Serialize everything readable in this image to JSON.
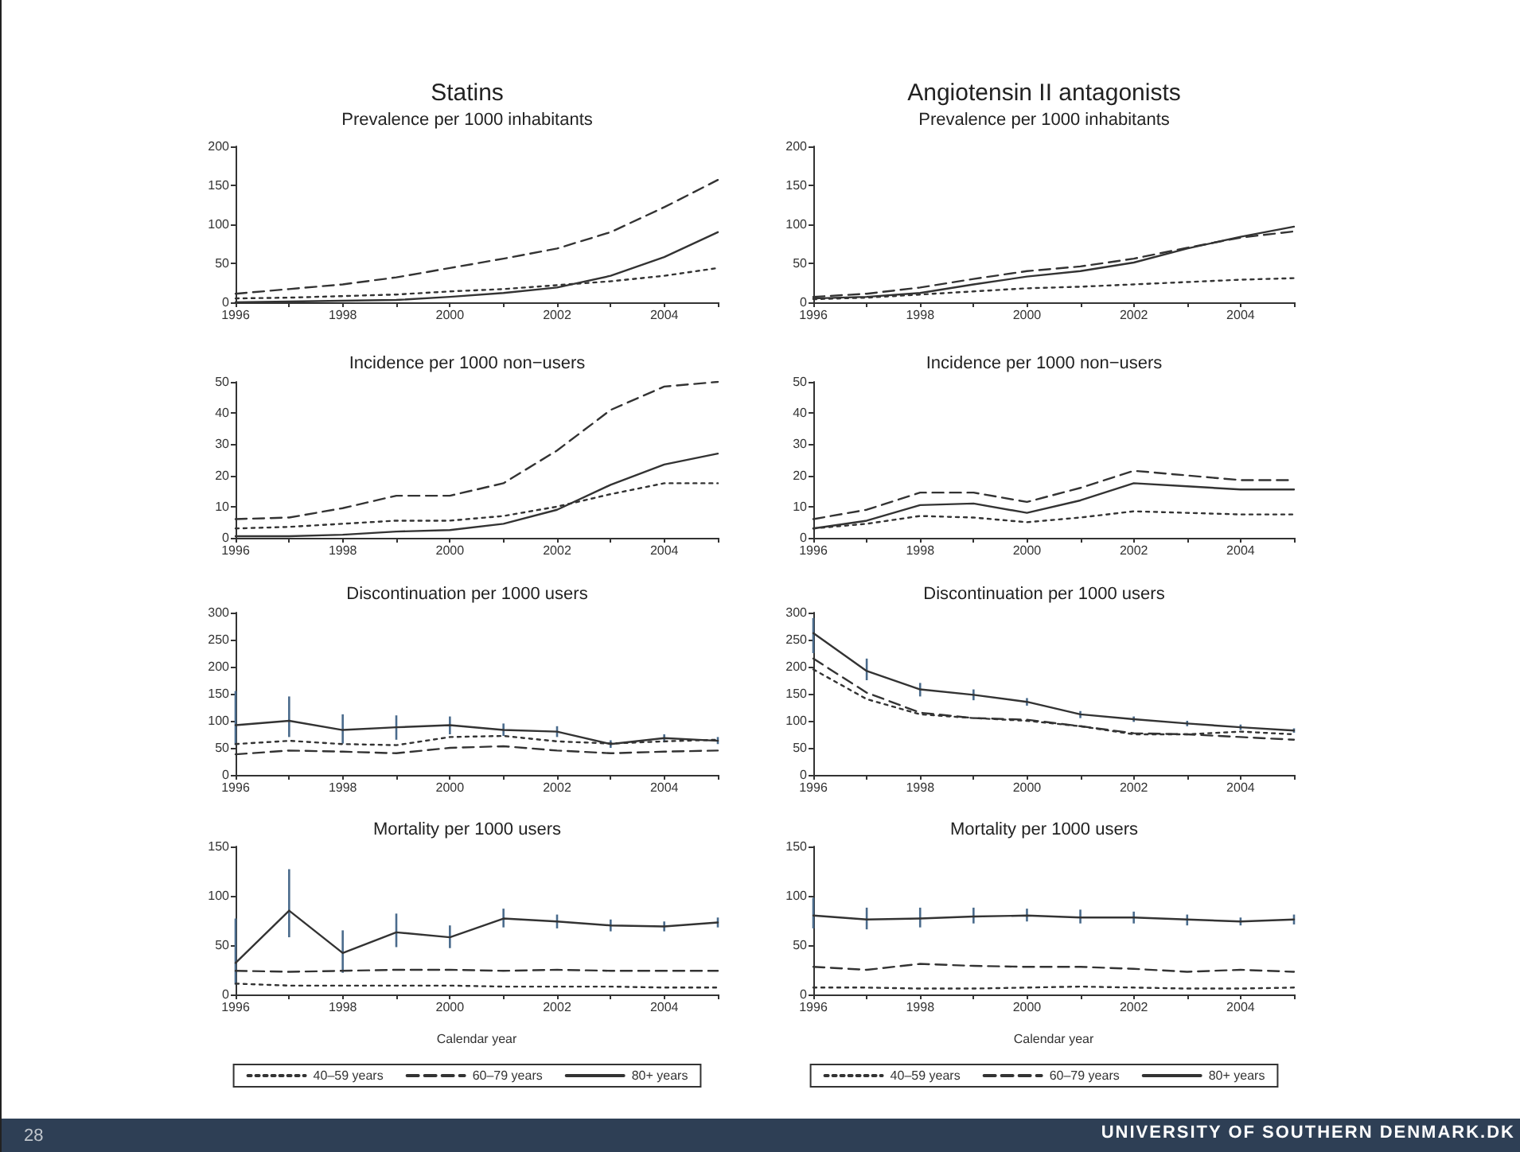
{
  "chart_data": [
    {
      "type": "line",
      "title": "Statins",
      "subtitle": "Prevalence per 1000 inhabitants",
      "x": [
        1996,
        1997,
        1998,
        1999,
        2000,
        2001,
        2002,
        2003,
        2004,
        2005
      ],
      "xlim": [
        1996,
        2005
      ],
      "xticks": [
        1996,
        {
          "value": 1997,
          "label": null
        },
        1998,
        {
          "value": 1999,
          "label": null
        },
        2000,
        {
          "value": 2001,
          "label": null
        },
        2002,
        {
          "value": 2003,
          "label": null
        },
        2004,
        {
          "value": 2005,
          "label": null
        }
      ],
      "ylim": [
        0,
        200
      ],
      "yticks": [
        0,
        50,
        100,
        150,
        200
      ],
      "grid": false,
      "legend": false,
      "marker": "none",
      "series": [
        {
          "color": "#333333",
          "line_style": "dotted",
          "values": [
            5,
            6,
            8,
            10,
            14,
            17,
            22,
            27,
            34,
            44
          ]
        },
        {
          "color": "#333333",
          "line_style": "dashed",
          "values": [
            11,
            17,
            23,
            32,
            44,
            56,
            69,
            90,
            122,
            157
          ]
        },
        {
          "color": "#333333",
          "line_style": "solid",
          "values": [
            0,
            1,
            2,
            3,
            7,
            12,
            19,
            34,
            58,
            90
          ]
        }
      ]
    },
    {
      "type": "line",
      "title": "Angiotensin II antagonists",
      "subtitle": "Prevalence per 1000 inhabitants",
      "x": [
        1996,
        1997,
        1998,
        1999,
        2000,
        2001,
        2002,
        2003,
        2004,
        2005
      ],
      "xlim": [
        1996,
        2005
      ],
      "xticks": [
        1996,
        {
          "value": 1997,
          "label": null
        },
        1998,
        {
          "value": 1999,
          "label": null
        },
        2000,
        {
          "value": 2001,
          "label": null
        },
        2002,
        {
          "value": 2003,
          "label": null
        },
        2004,
        {
          "value": 2005,
          "label": null
        }
      ],
      "ylim": [
        0,
        200
      ],
      "yticks": [
        0,
        50,
        100,
        150,
        200
      ],
      "grid": false,
      "legend": false,
      "marker": "none",
      "series": [
        {
          "color": "#333333",
          "line_style": "dotted",
          "values": [
            4,
            6,
            10,
            14,
            18,
            20,
            23,
            26,
            29,
            31
          ]
        },
        {
          "color": "#333333",
          "line_style": "dashed",
          "values": [
            7,
            11,
            19,
            30,
            40,
            46,
            56,
            70,
            83,
            91
          ]
        },
        {
          "color": "#333333",
          "line_style": "solid",
          "values": [
            5,
            7,
            12,
            23,
            33,
            40,
            51,
            69,
            84,
            97
          ]
        }
      ]
    },
    {
      "type": "line",
      "title": "Incidence per 1000 non−users",
      "x": [
        1996,
        1997,
        1998,
        1999,
        2000,
        2001,
        2002,
        2003,
        2004,
        2005
      ],
      "xlim": [
        1996,
        2005
      ],
      "xticks": [
        1996,
        {
          "value": 1997,
          "label": null
        },
        1998,
        {
          "value": 1999,
          "label": null
        },
        2000,
        {
          "value": 2001,
          "label": null
        },
        2002,
        {
          "value": 2003,
          "label": null
        },
        2004,
        {
          "value": 2005,
          "label": null
        }
      ],
      "ylim": [
        0,
        50
      ],
      "yticks": [
        0,
        10,
        20,
        30,
        40,
        50
      ],
      "grid": false,
      "legend": false,
      "marker": "none",
      "series": [
        {
          "color": "#333333",
          "line_style": "dotted",
          "values": [
            3,
            3.5,
            4.5,
            5.5,
            5.5,
            7,
            10,
            14,
            17.5,
            17.5
          ]
        },
        {
          "color": "#333333",
          "line_style": "dashed",
          "values": [
            6,
            6.5,
            9.5,
            13.5,
            13.5,
            17.5,
            28,
            41,
            48.5,
            50
          ]
        },
        {
          "color": "#333333",
          "line_style": "solid",
          "values": [
            0.5,
            0.5,
            1,
            2,
            2.5,
            4.5,
            9,
            17,
            23.5,
            27
          ]
        }
      ]
    },
    {
      "type": "line",
      "title": "Incidence per 1000 non−users",
      "x": [
        1996,
        1997,
        1998,
        1999,
        2000,
        2001,
        2002,
        2003,
        2004,
        2005
      ],
      "xlim": [
        1996,
        2005
      ],
      "xticks": [
        1996,
        {
          "value": 1997,
          "label": null
        },
        1998,
        {
          "value": 1999,
          "label": null
        },
        2000,
        {
          "value": 2001,
          "label": null
        },
        2002,
        {
          "value": 2003,
          "label": null
        },
        2004,
        {
          "value": 2005,
          "label": null
        }
      ],
      "ylim": [
        0,
        50
      ],
      "yticks": [
        0,
        10,
        20,
        30,
        40,
        50
      ],
      "grid": false,
      "legend": false,
      "marker": "none",
      "series": [
        {
          "color": "#333333",
          "line_style": "dotted",
          "values": [
            3,
            4.5,
            7,
            6.5,
            5,
            6.5,
            8.5,
            8,
            7.5,
            7.5
          ]
        },
        {
          "color": "#333333",
          "line_style": "dashed",
          "values": [
            6,
            9,
            14.5,
            14.5,
            11.5,
            16,
            21.5,
            20,
            18.5,
            18.5
          ]
        },
        {
          "color": "#333333",
          "line_style": "solid",
          "values": [
            3,
            5.5,
            10.5,
            11,
            8,
            12,
            17.5,
            16.5,
            15.5,
            15.5
          ]
        }
      ]
    },
    {
      "type": "line",
      "title": "Discontinuation per 1000 users",
      "x": [
        1996,
        1997,
        1998,
        1999,
        2000,
        2001,
        2002,
        2003,
        2004,
        2005
      ],
      "xlim": [
        1996,
        2005
      ],
      "xticks": [
        1996,
        {
          "value": 1997,
          "label": null
        },
        1998,
        {
          "value": 1999,
          "label": null
        },
        2000,
        {
          "value": 2001,
          "label": null
        },
        2002,
        {
          "value": 2003,
          "label": null
        },
        2004,
        {
          "value": 2005,
          "label": null
        }
      ],
      "ylim": [
        0,
        300
      ],
      "yticks": [
        0,
        50,
        100,
        150,
        200,
        250,
        300
      ],
      "grid": false,
      "legend": false,
      "marker": "none",
      "series": [
        {
          "color": "#333333",
          "line_style": "dotted",
          "values": [
            57,
            63,
            57,
            55,
            70,
            72,
            62,
            58,
            62,
            65
          ]
        },
        {
          "color": "#333333",
          "line_style": "dashed",
          "values": [
            38,
            45,
            43,
            40,
            50,
            53,
            45,
            40,
            43,
            45
          ]
        },
        {
          "color": "#333333",
          "line_style": "solid",
          "values": [
            92,
            100,
            83,
            88,
            92,
            83,
            80,
            57,
            68,
            63
          ],
          "errors": [
            [
              55,
              155
            ],
            [
              70,
              145
            ],
            [
              58,
              112
            ],
            [
              65,
              110
            ],
            [
              75,
              108
            ],
            [
              72,
              95
            ],
            [
              70,
              90
            ],
            [
              50,
              64
            ],
            [
              60,
              75
            ],
            [
              57,
              70
            ]
          ]
        }
      ]
    },
    {
      "type": "line",
      "title": "Discontinuation per 1000 users",
      "x": [
        1996,
        1997,
        1998,
        1999,
        2000,
        2001,
        2002,
        2003,
        2004,
        2005
      ],
      "xlim": [
        1996,
        2005
      ],
      "xticks": [
        1996,
        {
          "value": 1997,
          "label": null
        },
        1998,
        {
          "value": 1999,
          "label": null
        },
        2000,
        {
          "value": 2001,
          "label": null
        },
        2002,
        {
          "value": 2003,
          "label": null
        },
        2004,
        {
          "value": 2005,
          "label": null
        }
      ],
      "ylim": [
        0,
        300
      ],
      "yticks": [
        0,
        50,
        100,
        150,
        200,
        250,
        300
      ],
      "grid": false,
      "legend": false,
      "marker": "none",
      "series": [
        {
          "color": "#333333",
          "line_style": "dotted",
          "values": [
            195,
            140,
            112,
            105,
            100,
            90,
            75,
            75,
            80,
            75
          ]
        },
        {
          "color": "#333333",
          "line_style": "dashed",
          "values": [
            215,
            152,
            115,
            105,
            102,
            90,
            77,
            75,
            70,
            65
          ]
        },
        {
          "color": "#333333",
          "line_style": "solid",
          "values": [
            262,
            192,
            158,
            148,
            135,
            112,
            103,
            95,
            88,
            82
          ],
          "errors": [
            [
              225,
              290
            ],
            [
              175,
              215
            ],
            [
              145,
              170
            ],
            [
              138,
              158
            ],
            [
              128,
              142
            ],
            [
              105,
              118
            ],
            [
              98,
              108
            ],
            [
              90,
              100
            ],
            [
              83,
              93
            ],
            [
              78,
              86
            ]
          ]
        }
      ]
    },
    {
      "type": "line",
      "title": "Mortality per 1000 users",
      "xlabel": "Calendar year",
      "x": [
        1996,
        1997,
        1998,
        1999,
        2000,
        2001,
        2002,
        2003,
        2004,
        2005
      ],
      "xlim": [
        1996,
        2005
      ],
      "xticks": [
        1996,
        {
          "value": 1997,
          "label": null
        },
        1998,
        {
          "value": 1999,
          "label": null
        },
        2000,
        {
          "value": 2001,
          "label": null
        },
        2002,
        {
          "value": 2003,
          "label": null
        },
        2004,
        {
          "value": 2005,
          "label": null
        }
      ],
      "ylim": [
        0,
        150
      ],
      "yticks": [
        0,
        50,
        100,
        150
      ],
      "grid": false,
      "legend": "bottom",
      "marker": "none",
      "annotations": [
        "28"
      ],
      "series": [
        {
          "name": "40–59 years",
          "color": "#333333",
          "line_style": "dotted",
          "values": [
            11,
            9,
            9,
            9,
            9,
            8,
            8,
            8,
            7,
            7
          ]
        },
        {
          "name": "60–79 years",
          "color": "#333333",
          "line_style": "dashed",
          "values": [
            24,
            23,
            24,
            25,
            25,
            24,
            25,
            24,
            24,
            24
          ]
        },
        {
          "name": "80+ years",
          "color": "#333333",
          "line_style": "solid",
          "values": [
            32,
            85,
            42,
            63,
            58,
            77,
            74,
            70,
            69,
            73
          ],
          "errors": [
            [
              10,
              77
            ],
            [
              58,
              127
            ],
            [
              22,
              65
            ],
            [
              48,
              82
            ],
            [
              47,
              70
            ],
            [
              68,
              87
            ],
            [
              67,
              81
            ],
            [
              64,
              76
            ],
            [
              64,
              74
            ],
            [
              68,
              78
            ]
          ]
        }
      ]
    },
    {
      "type": "line",
      "title": "Mortality per 1000 users",
      "xlabel": "Calendar year",
      "x": [
        1996,
        1997,
        1998,
        1999,
        2000,
        2001,
        2002,
        2003,
        2004,
        2005
      ],
      "xlim": [
        1996,
        2005
      ],
      "xticks": [
        1996,
        {
          "value": 1997,
          "label": null
        },
        1998,
        {
          "value": 1999,
          "label": null
        },
        2000,
        {
          "value": 2001,
          "label": null
        },
        2002,
        {
          "value": 2003,
          "label": null
        },
        2004,
        {
          "value": 2005,
          "label": null
        }
      ],
      "ylim": [
        0,
        150
      ],
      "yticks": [
        0,
        50,
        100,
        150
      ],
      "grid": false,
      "legend": "bottom",
      "marker": "none",
      "annotations": [
        "UNIVERSITY OF SOUTHERN DENMARK.DK"
      ],
      "series": [
        {
          "name": "40–59 years",
          "color": "#333333",
          "line_style": "dotted",
          "values": [
            7,
            7,
            6,
            6,
            7,
            8,
            7,
            6,
            6,
            7
          ]
        },
        {
          "name": "60–79 years",
          "color": "#333333",
          "line_style": "dashed",
          "values": [
            28,
            25,
            31,
            29,
            28,
            28,
            26,
            23,
            25,
            23
          ]
        },
        {
          "name": "80+ years",
          "color": "#333333",
          "line_style": "solid",
          "values": [
            80,
            76,
            77,
            79,
            80,
            78,
            78,
            76,
            74,
            76
          ],
          "errors": [
            [
              67,
              98
            ],
            [
              66,
              88
            ],
            [
              68,
              88
            ],
            [
              72,
              88
            ],
            [
              74,
              87
            ],
            [
              72,
              86
            ],
            [
              72,
              84
            ],
            [
              70,
              81
            ],
            [
              70,
              78
            ],
            [
              71,
              81
            ]
          ]
        }
      ]
    }
  ]
}
